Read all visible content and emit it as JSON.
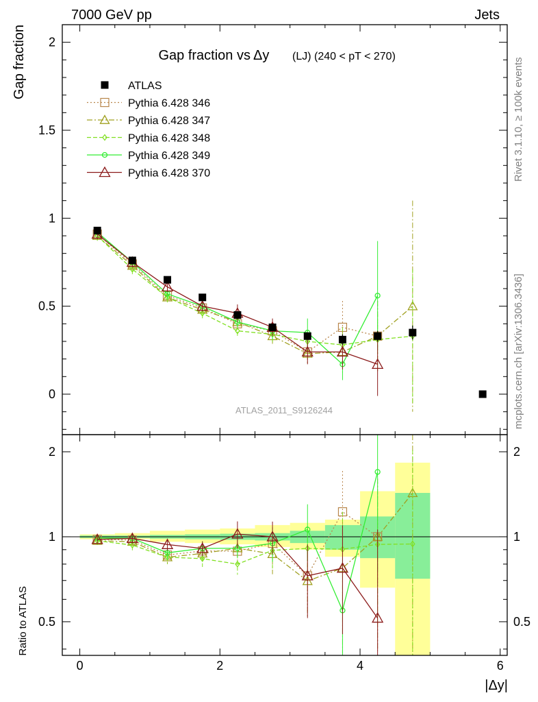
{
  "header": {
    "left": "7000 GeV pp",
    "right": "Jets"
  },
  "side_labels": {
    "rivet": "Rivet 3.1.10, ≥ 100k events",
    "mcplots": "mcplots.cern.ch [arXiv:1306.3436]"
  },
  "chart_data": {
    "type": "line",
    "title_main": "Gap fraction vs",
    "title_delta": "Δy",
    "title_sub": "(LJ) (240 < pT < 270)",
    "ylabel": "Gap fraction",
    "ratio_ylabel": "Ratio to ATLAS",
    "xlabel": "|Δy|",
    "analysis": "ATLAS_2011_S9126244",
    "xlim": [
      -0.25,
      6.1
    ],
    "ylim": [
      -0.23,
      2.1
    ],
    "ratio_ylim": [
      0.38,
      2.3
    ],
    "x_ticks": [
      "0",
      "2",
      "4",
      "6"
    ],
    "y_ticks": [
      "0",
      "0.5",
      "1",
      "1.5",
      "2"
    ],
    "ratio_ticks": [
      "0.5",
      "1",
      "2"
    ],
    "x": [
      0.25,
      0.75,
      1.25,
      1.75,
      2.25,
      2.75,
      3.25,
      3.75,
      4.25,
      4.75,
      5.75
    ],
    "atlas": {
      "name": "ATLAS",
      "values": [
        0.93,
        0.76,
        0.65,
        0.55,
        0.45,
        0.38,
        0.33,
        0.31,
        0.33,
        0.35,
        0.0
      ],
      "errors": [
        0.02,
        0.02,
        0.02,
        0.02,
        0.02,
        0.02,
        0.02,
        0.03,
        0.03,
        0.04,
        0.01
      ]
    },
    "ratio_band_yellow": [
      [
        0.0,
        0.5,
        0.98,
        1.02
      ],
      [
        0.5,
        1.0,
        0.98,
        1.03
      ],
      [
        1.0,
        1.5,
        0.96,
        1.05
      ],
      [
        1.5,
        2.0,
        0.95,
        1.06
      ],
      [
        2.0,
        2.5,
        0.94,
        1.07
      ],
      [
        2.5,
        3.0,
        0.92,
        1.1
      ],
      [
        3.0,
        3.5,
        0.9,
        1.12
      ],
      [
        3.5,
        4.0,
        0.85,
        1.15
      ],
      [
        4.0,
        4.5,
        0.66,
        1.45
      ],
      [
        4.5,
        5.0,
        0.38,
        1.83
      ]
    ],
    "ratio_band_green": [
      [
        0.0,
        0.5,
        0.99,
        1.01
      ],
      [
        0.5,
        1.0,
        0.99,
        1.01
      ],
      [
        1.0,
        1.5,
        0.985,
        1.015
      ],
      [
        1.5,
        2.0,
        0.98,
        1.02
      ],
      [
        2.0,
        2.5,
        0.975,
        1.025
      ],
      [
        2.5,
        3.0,
        0.97,
        1.03
      ],
      [
        3.0,
        3.5,
        0.95,
        1.05
      ],
      [
        3.5,
        4.0,
        0.9,
        1.1
      ],
      [
        4.0,
        4.5,
        0.84,
        1.18
      ],
      [
        4.5,
        5.0,
        0.71,
        1.43
      ]
    ],
    "series": [
      {
        "name": "Pythia 6.428 346",
        "color": "#b8864b",
        "dash": "2,3",
        "marker": "square",
        "values": [
          0.91,
          0.74,
          0.56,
          0.49,
          0.4,
          0.36,
          0.24,
          0.38,
          0.33,
          null,
          null
        ],
        "errors": [
          0.03,
          0.03,
          0.03,
          0.03,
          0.03,
          0.05,
          0.06,
          0.15,
          0.2,
          null,
          null
        ]
      },
      {
        "name": "Pythia 6.428 347",
        "color": "#a0a020",
        "dash": "8,3,2,3",
        "marker": "triangle",
        "values": [
          0.9,
          0.73,
          0.55,
          0.48,
          0.41,
          0.33,
          0.23,
          0.24,
          0.33,
          0.5,
          null
        ],
        "errors": [
          0.03,
          0.03,
          0.03,
          0.03,
          0.03,
          0.05,
          0.06,
          0.12,
          0.2,
          0.6,
          null
        ]
      },
      {
        "name": "Pythia 6.428 348",
        "color": "#80e020",
        "dash": "6,3",
        "marker": "diamond",
        "values": [
          0.9,
          0.71,
          0.55,
          0.46,
          0.36,
          0.34,
          0.3,
          0.28,
          0.31,
          0.33,
          null
        ],
        "errors": [
          0.03,
          0.03,
          0.03,
          0.03,
          0.03,
          0.05,
          0.06,
          0.1,
          0.15,
          0.38,
          null
        ]
      },
      {
        "name": "Pythia 6.428 349",
        "color": "#33ee33",
        "dash": "",
        "marker": "circle",
        "values": [
          0.92,
          0.75,
          0.57,
          0.5,
          0.41,
          0.36,
          0.35,
          0.17,
          0.56,
          null,
          null
        ],
        "errors": [
          0.03,
          0.03,
          0.03,
          0.03,
          0.03,
          0.05,
          0.08,
          0.09,
          0.31,
          null,
          null
        ]
      },
      {
        "name": "Pythia 6.428 370",
        "color": "#8b1a1a",
        "dash": "",
        "marker": "triangle-open",
        "values": [
          0.91,
          0.75,
          0.61,
          0.5,
          0.46,
          0.38,
          0.24,
          0.24,
          0.17,
          null,
          null
        ],
        "errors": [
          0.03,
          0.03,
          0.03,
          0.03,
          0.05,
          0.05,
          0.07,
          0.1,
          0.18,
          null,
          null
        ]
      }
    ]
  }
}
